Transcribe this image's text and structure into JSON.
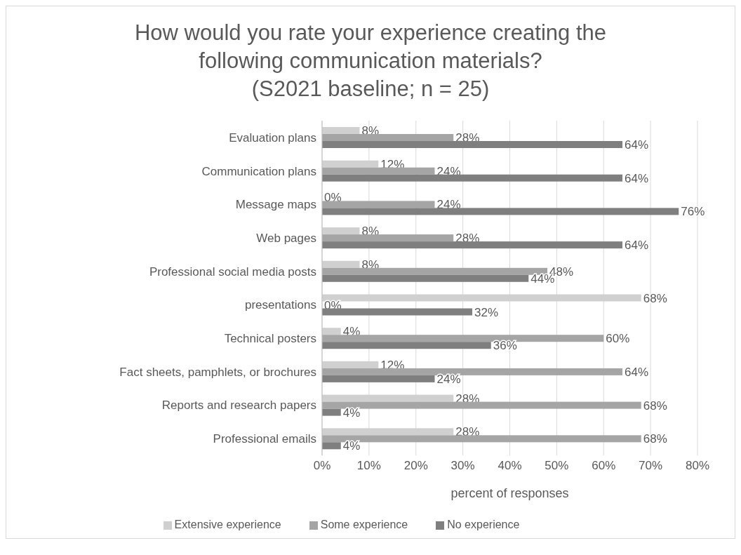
{
  "chart_data": {
    "type": "bar",
    "orientation": "horizontal",
    "title": "How would you rate your experience creating the\nfollowing communication materials?\n(S2021 baseline; n = 25)",
    "xlabel": "percent of responses",
    "categories": [
      "Evaluation plans",
      "Communication plans",
      "Message maps",
      "Web pages",
      "Professional social media posts",
      "presentations",
      "Technical posters",
      "Fact sheets, pamphlets, or brochures",
      "Reports and research papers",
      "Professional emails"
    ],
    "series": [
      {
        "name": "Extensive experience",
        "color": "#d0d0d0",
        "values": [
          8,
          12,
          0,
          8,
          8,
          68,
          4,
          12,
          28,
          28
        ],
        "value_labels": [
          "8%",
          "12%",
          "0%",
          "8%",
          "8%",
          "68%",
          "4%",
          "12%",
          "28%",
          "28%"
        ]
      },
      {
        "name": "Some experience",
        "color": "#a5a5a5",
        "values": [
          28,
          24,
          24,
          28,
          48,
          0,
          60,
          64,
          68,
          68
        ],
        "value_labels": [
          "28%",
          "24%",
          "24%",
          "28%",
          "48%",
          "0%",
          "60%",
          "64%",
          "68%",
          "68%"
        ]
      },
      {
        "name": "No experience",
        "color": "#7f7f7f",
        "values": [
          64,
          64,
          76,
          64,
          44,
          32,
          36,
          24,
          4,
          4
        ],
        "value_labels": [
          "64%",
          "64%",
          "76%",
          "64%",
          "44%",
          "32%",
          "36%",
          "24%",
          "4%",
          "4%"
        ]
      }
    ],
    "xlim": [
      0,
      80
    ],
    "xticks": [
      {
        "value": 0,
        "label": "0%"
      },
      {
        "value": 10,
        "label": "10%"
      },
      {
        "value": 20,
        "label": "20%"
      },
      {
        "value": 30,
        "label": "30%"
      },
      {
        "value": 40,
        "label": "40%"
      },
      {
        "value": 50,
        "label": "50%"
      },
      {
        "value": 60,
        "label": "60%"
      },
      {
        "value": 70,
        "label": "70%"
      },
      {
        "value": 80,
        "label": "80%"
      }
    ],
    "grid": "x",
    "legend": "bottom"
  }
}
